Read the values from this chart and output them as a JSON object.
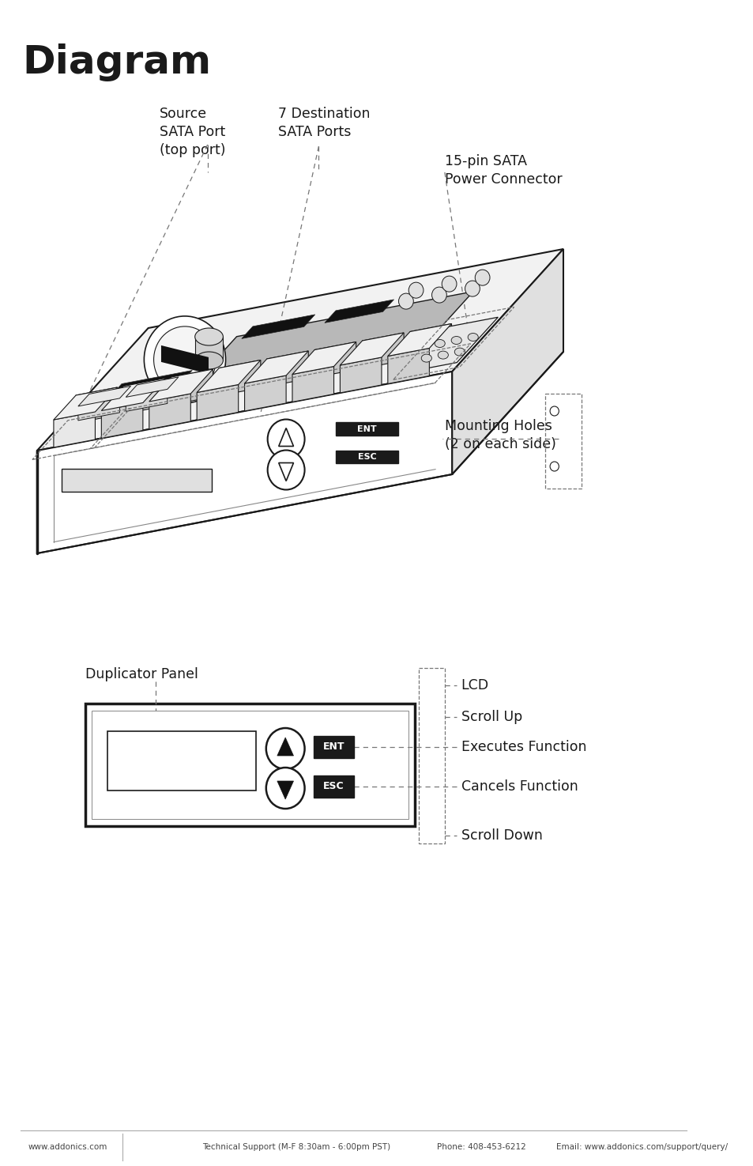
{
  "title": "Diagram",
  "title_fontsize": 36,
  "title_fontweight": "bold",
  "bg_color": "#ffffff",
  "line_color": "#1a1a1a",
  "dashed_color": "#777777",
  "gray_fill": "#c0c0c0",
  "light_gray": "#e8e8e8",
  "dark_fill": "#111111",
  "annotation_fontsize": 12.5,
  "footer_text_left": "www.addonics.com",
  "footer_text_center": "Technical Support (M-F 8:30am - 6:00pm PST)",
  "footer_text_phone": "Phone: 408-453-6212",
  "footer_text_email": "Email: www.addonics.com/support/query/",
  "footer_fontsize": 7.5
}
